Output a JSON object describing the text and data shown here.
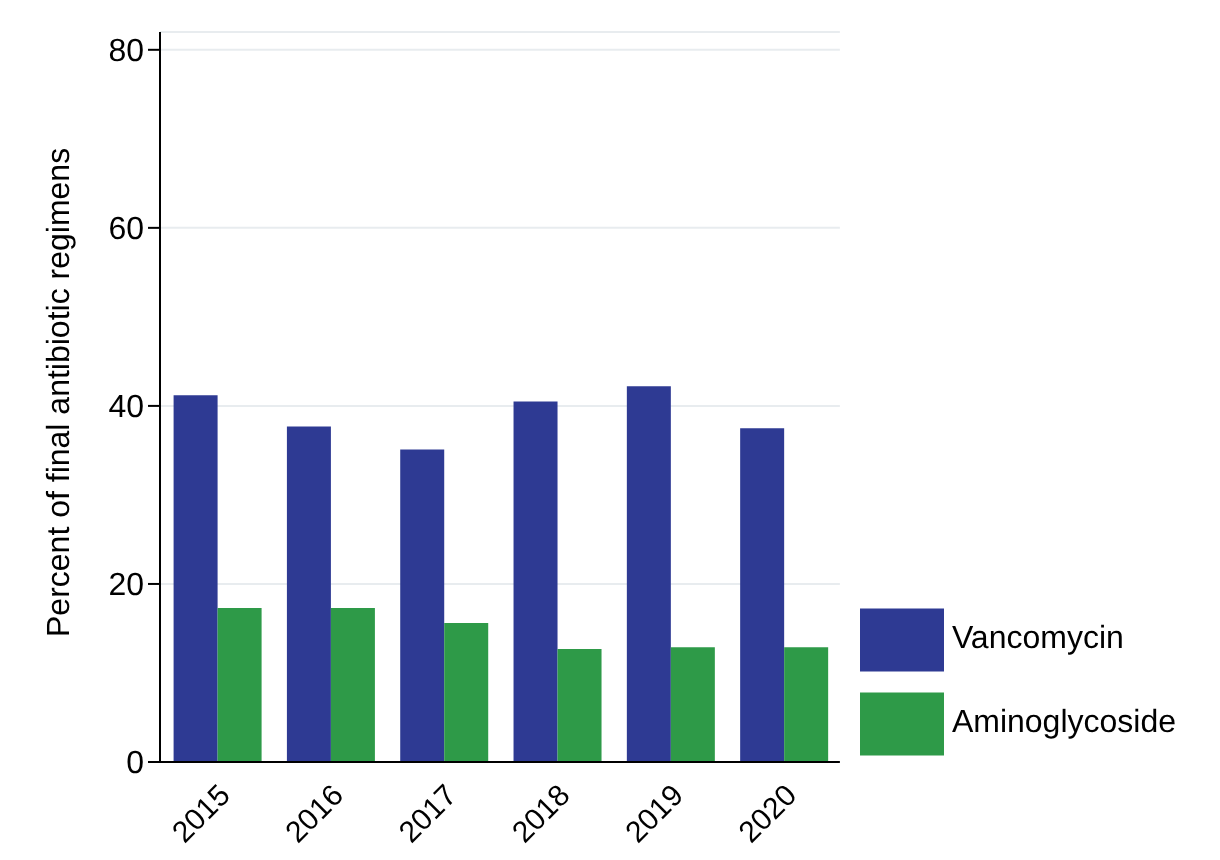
{
  "chart_data": {
    "type": "bar",
    "ylabel": "Percent of final antibiotic regimens",
    "categories": [
      "2015",
      "2016",
      "2017",
      "2018",
      "2019",
      "2020"
    ],
    "series": [
      {
        "name": "Vancomycin",
        "color": "#2e3a93",
        "values": [
          41.2,
          37.7,
          35.1,
          40.5,
          42.2,
          37.5
        ]
      },
      {
        "name": "Aminoglycoside",
        "color": "#2e9a48",
        "values": [
          17.3,
          17.3,
          15.6,
          12.7,
          12.9,
          12.9
        ]
      }
    ],
    "ylim": [
      0,
      82
    ],
    "yticks": [
      0,
      20,
      40,
      60,
      80
    ],
    "grid": "y",
    "legend": "right"
  }
}
